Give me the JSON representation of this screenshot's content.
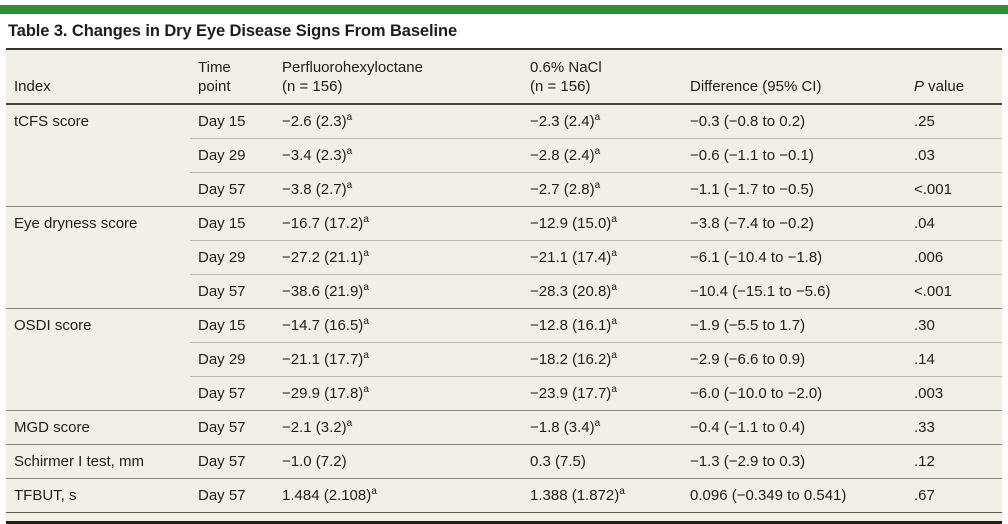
{
  "colors": {
    "accent_green": "#2e9036",
    "table_background": "#f2efe5",
    "rule_dark": "#35342e",
    "rule_group": "#8a877c",
    "rule_inner": "#bdbab0"
  },
  "title": "Table 3. Changes in Dry Eye Disease Signs From Baseline",
  "table": {
    "headers": {
      "index": "Index",
      "time_line1": "Time",
      "time_line2": "point",
      "pfho_line1": "Perfluorohexyloctane",
      "pfho_line2": "(n = 156)",
      "nacl_line1": "0.6% NaCl",
      "nacl_line2": "(n = 156)",
      "difference": "Difference (95% CI)",
      "p_italic": "P",
      "p_rest": " value"
    },
    "rows": [
      {
        "index": "tCFS score",
        "rowspan": 3,
        "time": "Day 15",
        "pfho": "−2.6 (2.3)",
        "pfho_sup": "a",
        "nacl": "−2.3 (2.4)",
        "nacl_sup": "a",
        "diff": "−0.3 (−0.8 to 0.2)",
        "p": ".25"
      },
      {
        "time": "Day 29",
        "pfho": "−3.4 (2.3)",
        "pfho_sup": "a",
        "nacl": "−2.8 (2.4)",
        "nacl_sup": "a",
        "diff": "−0.6 (−1.1 to −0.1)",
        "p": ".03"
      },
      {
        "time": "Day 57",
        "pfho": "−3.8 (2.7)",
        "pfho_sup": "a",
        "nacl": "−2.7 (2.8)",
        "nacl_sup": "a",
        "diff": "−1.1 (−1.7 to −0.5)",
        "p": "<.001"
      },
      {
        "index": "Eye dryness score",
        "rowspan": 3,
        "time": "Day 15",
        "pfho": "−16.7 (17.2)",
        "pfho_sup": "a",
        "nacl": "−12.9 (15.0)",
        "nacl_sup": "a",
        "diff": "−3.8 (−7.4 to −0.2)",
        "p": ".04"
      },
      {
        "time": "Day 29",
        "pfho": "−27.2 (21.1)",
        "pfho_sup": "a",
        "nacl": "−21.1 (17.4)",
        "nacl_sup": "a",
        "diff": "−6.1 (−10.4 to −1.8)",
        "p": ".006"
      },
      {
        "time": "Day 57",
        "pfho": "−38.6 (21.9)",
        "pfho_sup": "a",
        "nacl": "−28.3 (20.8)",
        "nacl_sup": "a",
        "diff": "−10.4 (−15.1 to −5.6)",
        "p": "<.001"
      },
      {
        "index": "OSDI score",
        "rowspan": 3,
        "time": "Day 15",
        "pfho": "−14.7 (16.5)",
        "pfho_sup": "a",
        "nacl": "−12.8 (16.1)",
        "nacl_sup": "a",
        "diff": "−1.9 (−5.5 to 1.7)",
        "p": ".30"
      },
      {
        "time": "Day 29",
        "pfho": "−21.1 (17.7)",
        "pfho_sup": "a",
        "nacl": "−18.2 (16.2)",
        "nacl_sup": "a",
        "diff": "−2.9 (−6.6 to 0.9)",
        "p": ".14"
      },
      {
        "time": "Day 57",
        "pfho": "−29.9 (17.8)",
        "pfho_sup": "a",
        "nacl": "−23.9 (17.7)",
        "nacl_sup": "a",
        "diff": "−6.0 (−10.0 to −2.0)",
        "p": ".003"
      },
      {
        "index": "MGD score",
        "rowspan": 1,
        "time": "Day 57",
        "pfho": "−2.1 (3.2)",
        "pfho_sup": "a",
        "nacl": "−1.8 (3.4)",
        "nacl_sup": "a",
        "diff": "−0.4 (−1.1 to 0.4)",
        "p": ".33"
      },
      {
        "index": "Schirmer I test, mm",
        "rowspan": 1,
        "time": "Day 57",
        "pfho": "−1.0 (7.2)",
        "nacl": "0.3 (7.5)",
        "diff": "−1.3 (−2.9 to 0.3)",
        "p": ".12"
      },
      {
        "index": "TFBUT, s",
        "rowspan": 1,
        "time": "Day 57",
        "pfho": "1.484 (2.108)",
        "pfho_sup": "a",
        "nacl": "1.388 (1.872)",
        "nacl_sup": "a",
        "diff": "0.096 (−0.349 to 0.541)",
        "p": ".67"
      }
    ]
  }
}
